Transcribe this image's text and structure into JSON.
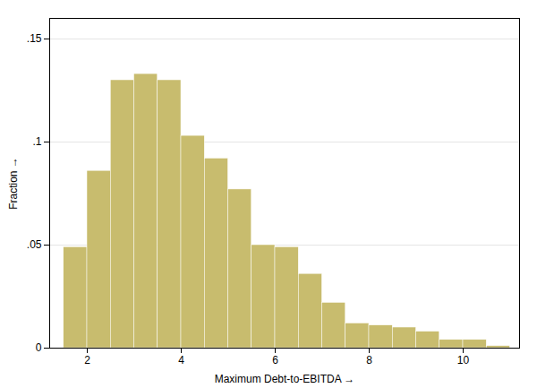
{
  "chart_data": {
    "type": "histogram",
    "xlabel": "Maximum Debt-to-EBITDA",
    "ylabel": "Fraction",
    "bins": [
      1.5,
      2.0,
      2.5,
      3.0,
      3.5,
      4.0,
      4.5,
      5.0,
      5.5,
      6.0,
      6.5,
      7.0,
      7.5,
      8.0,
      8.5,
      9.0,
      9.5,
      10.0,
      10.5,
      11.0
    ],
    "values": [
      0.049,
      0.086,
      0.13,
      0.133,
      0.13,
      0.103,
      0.092,
      0.077,
      0.05,
      0.049,
      0.036,
      0.022,
      0.012,
      0.011,
      0.01,
      0.008,
      0.004,
      0.004,
      0.001
    ],
    "color": "#C8BC6E",
    "xlim": [
      1.2,
      11.2
    ],
    "xticks": [
      2,
      4,
      6,
      8,
      10
    ],
    "ylim": [
      0,
      0.16
    ],
    "yticks": [
      0,
      {
        "value": 0.05,
        "label": ".05"
      },
      {
        "value": 0.1,
        "label": ".1"
      },
      {
        "value": 0.15,
        "label": ".15"
      }
    ],
    "grid": true
  }
}
